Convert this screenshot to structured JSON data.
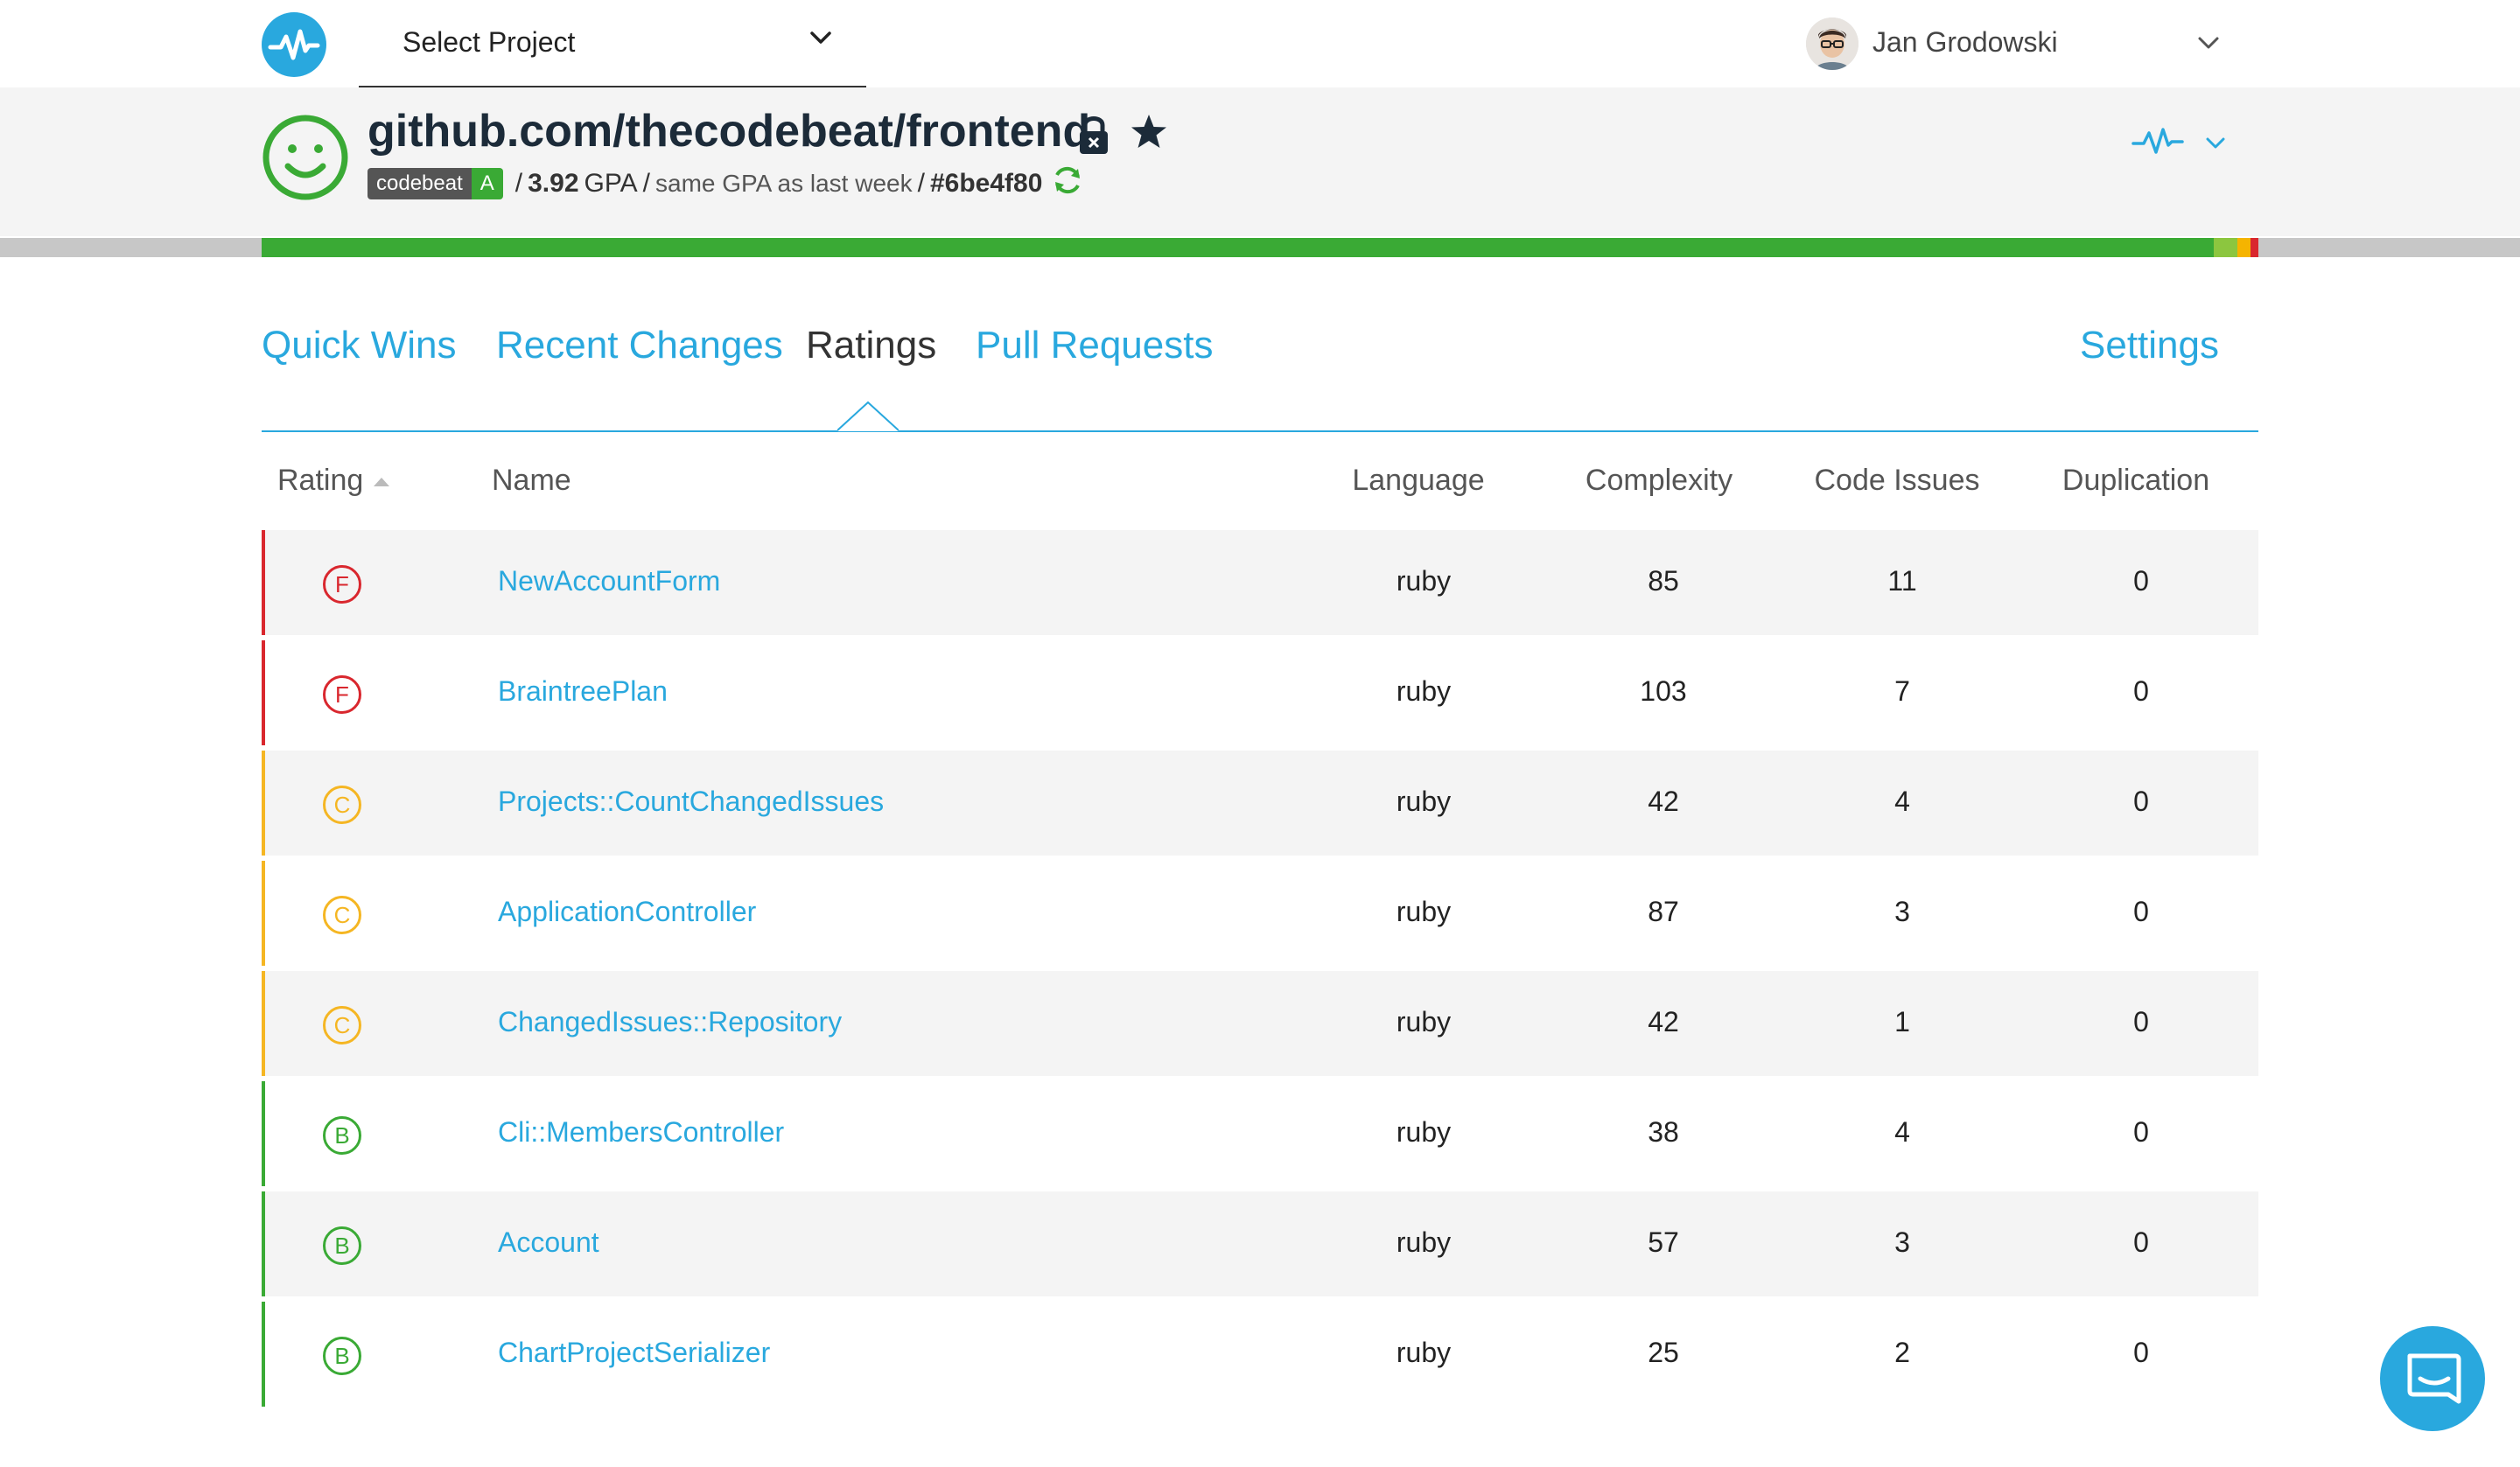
{
  "nav": {
    "project_select_label": "Select Project",
    "user_name": "Jan Grodowski"
  },
  "project": {
    "title": "github.com/thecodebeat/frontend",
    "badge_name": "codebeat",
    "badge_grade": "A",
    "gpa": "3.92",
    "gpa_unit": "GPA",
    "gpa_note": "same GPA as last week",
    "commit": "#6be4f80"
  },
  "tabs": [
    {
      "label": "Quick Wins",
      "active": false
    },
    {
      "label": "Recent Changes",
      "active": false
    },
    {
      "label": "Ratings",
      "active": true
    },
    {
      "label": "Pull Requests",
      "active": false
    },
    {
      "label": "Settings",
      "active": false
    }
  ],
  "table": {
    "headers": {
      "rating": "Rating",
      "name": "Name",
      "language": "Language",
      "complexity": "Complexity",
      "code_issues": "Code Issues",
      "duplication": "Duplication"
    },
    "rows": [
      {
        "grade": "F",
        "name": "NewAccountForm",
        "language": "ruby",
        "complexity": "85",
        "code_issues": "11",
        "duplication": "0"
      },
      {
        "grade": "F",
        "name": "BraintreePlan",
        "language": "ruby",
        "complexity": "103",
        "code_issues": "7",
        "duplication": "0"
      },
      {
        "grade": "C",
        "name": "Projects::CountChangedIssues",
        "language": "ruby",
        "complexity": "42",
        "code_issues": "4",
        "duplication": "0"
      },
      {
        "grade": "C",
        "name": "ApplicationController",
        "language": "ruby",
        "complexity": "87",
        "code_issues": "3",
        "duplication": "0"
      },
      {
        "grade": "C",
        "name": "ChangedIssues::Repository",
        "language": "ruby",
        "complexity": "42",
        "code_issues": "1",
        "duplication": "0"
      },
      {
        "grade": "B",
        "name": "Cli::MembersController",
        "language": "ruby",
        "complexity": "38",
        "code_issues": "4",
        "duplication": "0"
      },
      {
        "grade": "B",
        "name": "Account",
        "language": "ruby",
        "complexity": "57",
        "code_issues": "3",
        "duplication": "0"
      },
      {
        "grade": "B",
        "name": "ChartProjectSerializer",
        "language": "ruby",
        "complexity": "25",
        "code_issues": "2",
        "duplication": "0"
      }
    ]
  },
  "gpa_bar": [
    {
      "fraction": 0.9775,
      "color": "#3aaa35"
    },
    {
      "fraction": 0.012,
      "color": "#8cc63f"
    },
    {
      "fraction": 0.0065,
      "color": "#f5b400"
    },
    {
      "fraction": 0.004,
      "color": "#d9272e"
    }
  ],
  "grade_colors": {
    "F": "#d9272e",
    "C": "#f5b623",
    "B": "#3aaa35",
    "A": "#3aaa35"
  },
  "colors": {
    "accent": "#29a8de",
    "good": "#3aaa35"
  },
  "icons": {
    "logo": "pulse-logo-icon",
    "project_dropdown": "chevron-down-icon",
    "user_dropdown": "chevron-down-icon",
    "health": "smiley-icon",
    "private": "lock-icon",
    "favorite": "star-icon",
    "refresh": "refresh-icon",
    "activity": "activity-icon",
    "chat": "chat-icon"
  }
}
